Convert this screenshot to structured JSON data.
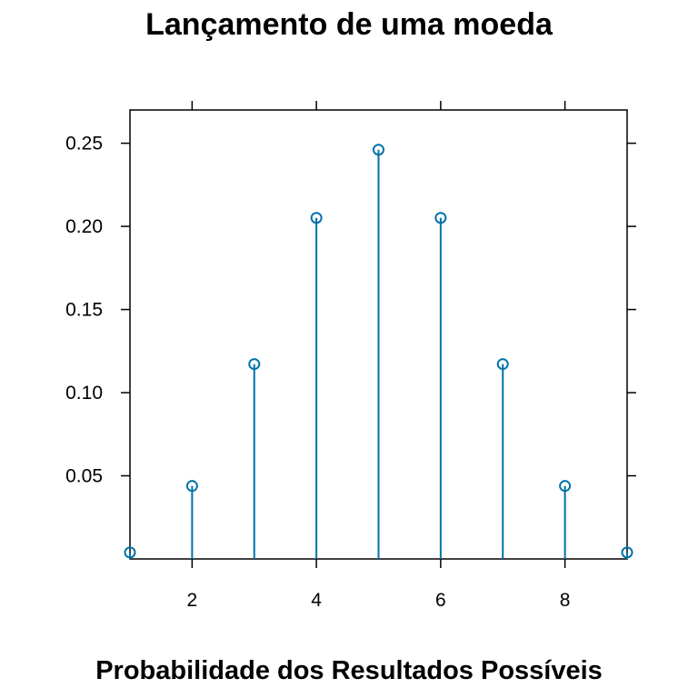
{
  "chart_data": {
    "type": "scatter",
    "style": "stem",
    "title": "Lançamento de uma moeda",
    "xlabel": "Probabilidade dos Resultados Possíveis",
    "ylabel": "",
    "x": [
      1,
      2,
      3,
      4,
      5,
      6,
      7,
      8,
      9
    ],
    "y": [
      0.0039,
      0.0439,
      0.1172,
      0.2051,
      0.2461,
      0.2051,
      0.1172,
      0.0439,
      0.0039
    ],
    "xlim": [
      1,
      9
    ],
    "ylim": [
      0,
      0.27
    ],
    "xticks": [
      2,
      4,
      6,
      8
    ],
    "yticks": [
      0.05,
      0.1,
      0.15,
      0.2,
      0.25
    ],
    "ytick_labels": [
      "0.05",
      "0.10",
      "0.15",
      "0.20",
      "0.25"
    ],
    "color": "#0072a8",
    "grid": false,
    "legend": "none"
  }
}
